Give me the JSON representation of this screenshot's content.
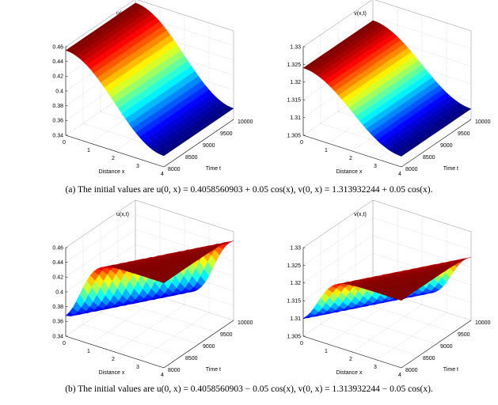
{
  "chart_data": [
    {
      "type": "surface",
      "title": "u(x,t)",
      "xlabel": "Distance x",
      "ylabel": "Time t",
      "x_ticks": [
        "0",
        "1",
        "2",
        "3",
        "4"
      ],
      "t_ticks": [
        "8000",
        "8500",
        "9000",
        "9500",
        "10000"
      ],
      "z_ticks": [
        "0.34",
        "0.36",
        "0.38",
        "0.4",
        "0.42",
        "0.44",
        "0.46"
      ],
      "xlim": [
        0,
        4
      ],
      "tlim": [
        8000,
        10000
      ],
      "zlim": [
        0.34,
        0.46
      ],
      "shape": "smooth_cosine",
      "z_range": [
        0.355,
        0.455
      ],
      "grid": true
    },
    {
      "type": "surface",
      "title": "v(x,t)",
      "xlabel": "Distance x",
      "ylabel": "Time t",
      "x_ticks": [
        "0",
        "1",
        "2",
        "3",
        "4"
      ],
      "t_ticks": [
        "8000",
        "8500",
        "9000",
        "9500",
        "10000"
      ],
      "z_ticks": [
        "1.305",
        "1.31",
        "1.315",
        "1.32",
        "1.325",
        "1.33"
      ],
      "xlim": [
        0,
        4
      ],
      "tlim": [
        8000,
        10000
      ],
      "zlim": [
        1.305,
        1.33
      ],
      "shape": "smooth_cosine",
      "z_range": [
        1.308,
        1.324
      ],
      "grid": true
    },
    {
      "type": "surface",
      "title": "u(x,t)",
      "xlabel": "Distance x",
      "ylabel": "Time t",
      "x_ticks": [
        "0",
        "1",
        "2",
        "3",
        "4"
      ],
      "t_ticks": [
        "8000",
        "8500",
        "9000",
        "9500",
        "10000"
      ],
      "z_ticks": [
        "0.34",
        "0.36",
        "0.38",
        "0.4",
        "0.42",
        "0.44",
        "0.46"
      ],
      "xlim": [
        0,
        4
      ],
      "tlim": [
        8000,
        10000
      ],
      "zlim": [
        0.34,
        0.46
      ],
      "shape": "travelling_step",
      "z_range": [
        0.355,
        0.455
      ],
      "grid": true
    },
    {
      "type": "surface",
      "title": "v(x,t)",
      "xlabel": "Distance x",
      "ylabel": "Time t",
      "x_ticks": [
        "0",
        "1",
        "2",
        "3",
        "4"
      ],
      "t_ticks": [
        "8000",
        "8500",
        "9000",
        "9500",
        "10000"
      ],
      "z_ticks": [
        "1.305",
        "1.31",
        "1.315",
        "1.32",
        "1.325",
        "1.33"
      ],
      "xlim": [
        0,
        4
      ],
      "tlim": [
        8000,
        10000
      ],
      "zlim": [
        1.305,
        1.33
      ],
      "shape": "travelling_step",
      "z_range": [
        1.308,
        1.324
      ],
      "grid": true
    }
  ],
  "captions": {
    "a": "(a) The initial values are u(0, x) = 0.4058560903 + 0.05 cos(x), v(0, x) = 1.313932244 + 0.05 cos(x).",
    "b": "(b) The initial values are u(0, x) = 0.4058560903 − 0.05 cos(x), v(0, x) = 1.313932244 − 0.05 cos(x)."
  }
}
